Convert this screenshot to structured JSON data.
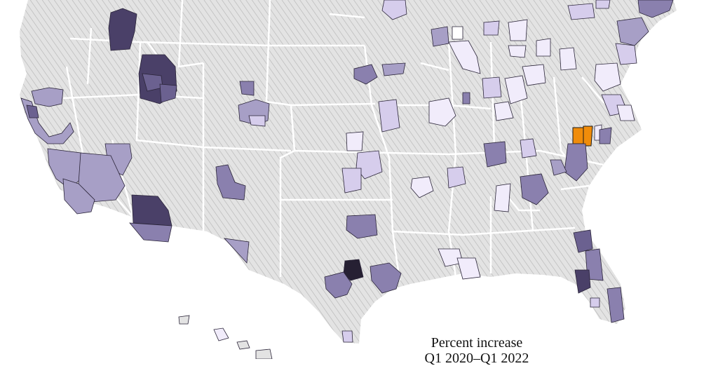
{
  "legend": {
    "line1": "Percent increase",
    "line2": "Q1 2020–Q1 2022"
  },
  "colors": {
    "land": "#e3e3e3",
    "hatch": "#8a8a8a",
    "state_border": "#ffffff",
    "highlight": "#f08c0a",
    "ramp": [
      "#f1ecfb",
      "#d6cdec",
      "#a79fc6",
      "#8a80ae",
      "#6b6190",
      "#4a4068",
      "#262033"
    ]
  }
}
